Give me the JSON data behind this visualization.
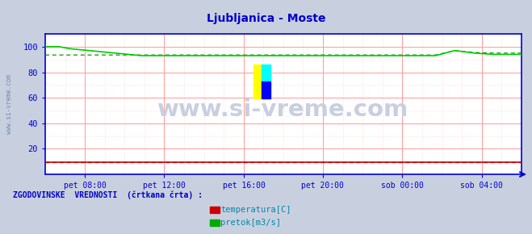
{
  "title": "Ljubljanica - Moste",
  "title_color": "#0000cc",
  "bg_color": "#c8d0e0",
  "plot_bg_color": "#ffffff",
  "watermark": "www.si-vreme.com",
  "watermark_color": "#c8d0df",
  "ylabel_text": "www.si-vreme.com",
  "x_tick_labels": [
    "pet 08:00",
    "pet 12:00",
    "pet 16:00",
    "pet 20:00",
    "sob 00:00",
    "sob 04:00"
  ],
  "x_tick_positions": [
    0.083,
    0.25,
    0.417,
    0.583,
    0.75,
    0.917
  ],
  "ylim": [
    0,
    110
  ],
  "yticks": [
    20,
    40,
    60,
    80,
    100
  ],
  "grid_color": "#ff9999",
  "grid_color2": "#ffcccc",
  "axis_color": "#0000dd",
  "tick_label_color": "#0000cc",
  "legend_label": "ZGODOVINSKE  VREDNOSTI  (črtkana črta) :",
  "legend_label_color": "#0000cc",
  "legend_items": [
    {
      "label": "temperatura[C]",
      "color": "#cc0000"
    },
    {
      "label": "pretok[m3/s]",
      "color": "#00aa00"
    }
  ],
  "temp_color": "#cc0000",
  "flow_color": "#00cc00",
  "flow_hist_color": "#009900",
  "temp_hist_color": "#cc0000",
  "n_points": 289
}
